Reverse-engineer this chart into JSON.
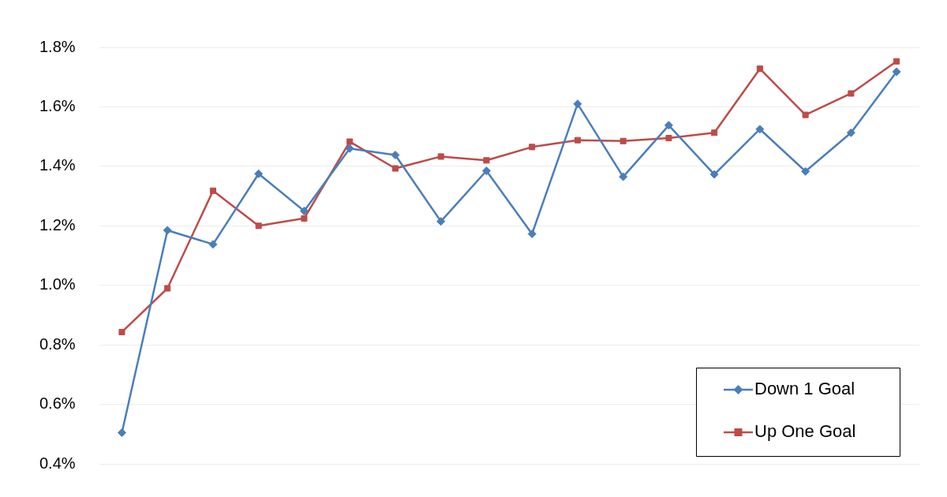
{
  "chart_data": {
    "type": "line",
    "categories": [
      null,
      null,
      null,
      null,
      null,
      null,
      null,
      null,
      null,
      null,
      null,
      null,
      null,
      null,
      null,
      null,
      null,
      null
    ],
    "series": [
      {
        "name": "Down 1 Goal",
        "color": "#4a7ebb",
        "marker": "diamond",
        "values": [
          0.505,
          1.185,
          1.138,
          1.375,
          1.25,
          1.46,
          1.438,
          1.215,
          1.385,
          1.173,
          1.61,
          1.365,
          1.538,
          1.373,
          1.525,
          1.383,
          1.513,
          1.718
        ]
      },
      {
        "name": "Up One Goal",
        "color": "#be4b48",
        "marker": "square",
        "values": [
          0.843,
          0.99,
          1.318,
          1.2,
          1.225,
          1.483,
          1.393,
          1.433,
          1.42,
          1.465,
          1.488,
          1.485,
          1.495,
          1.513,
          1.728,
          1.573,
          1.645,
          1.753
        ]
      }
    ],
    "ylim": [
      0.4,
      1.8
    ],
    "yticks": [
      {
        "value": 0.4,
        "label": "0.4%"
      },
      {
        "value": 0.6,
        "label": "0.6%"
      },
      {
        "value": 0.8,
        "label": "0.8%"
      },
      {
        "value": 1.0,
        "label": "1.0%"
      },
      {
        "value": 1.2,
        "label": "1.2%"
      },
      {
        "value": 1.4,
        "label": "1.4%"
      },
      {
        "value": 1.6,
        "label": "1.6%"
      },
      {
        "value": 1.8,
        "label": "1.8%"
      }
    ],
    "grid": "y",
    "legend": "bottom right",
    "tick_labels": "y",
    "line_style": "solid"
  }
}
